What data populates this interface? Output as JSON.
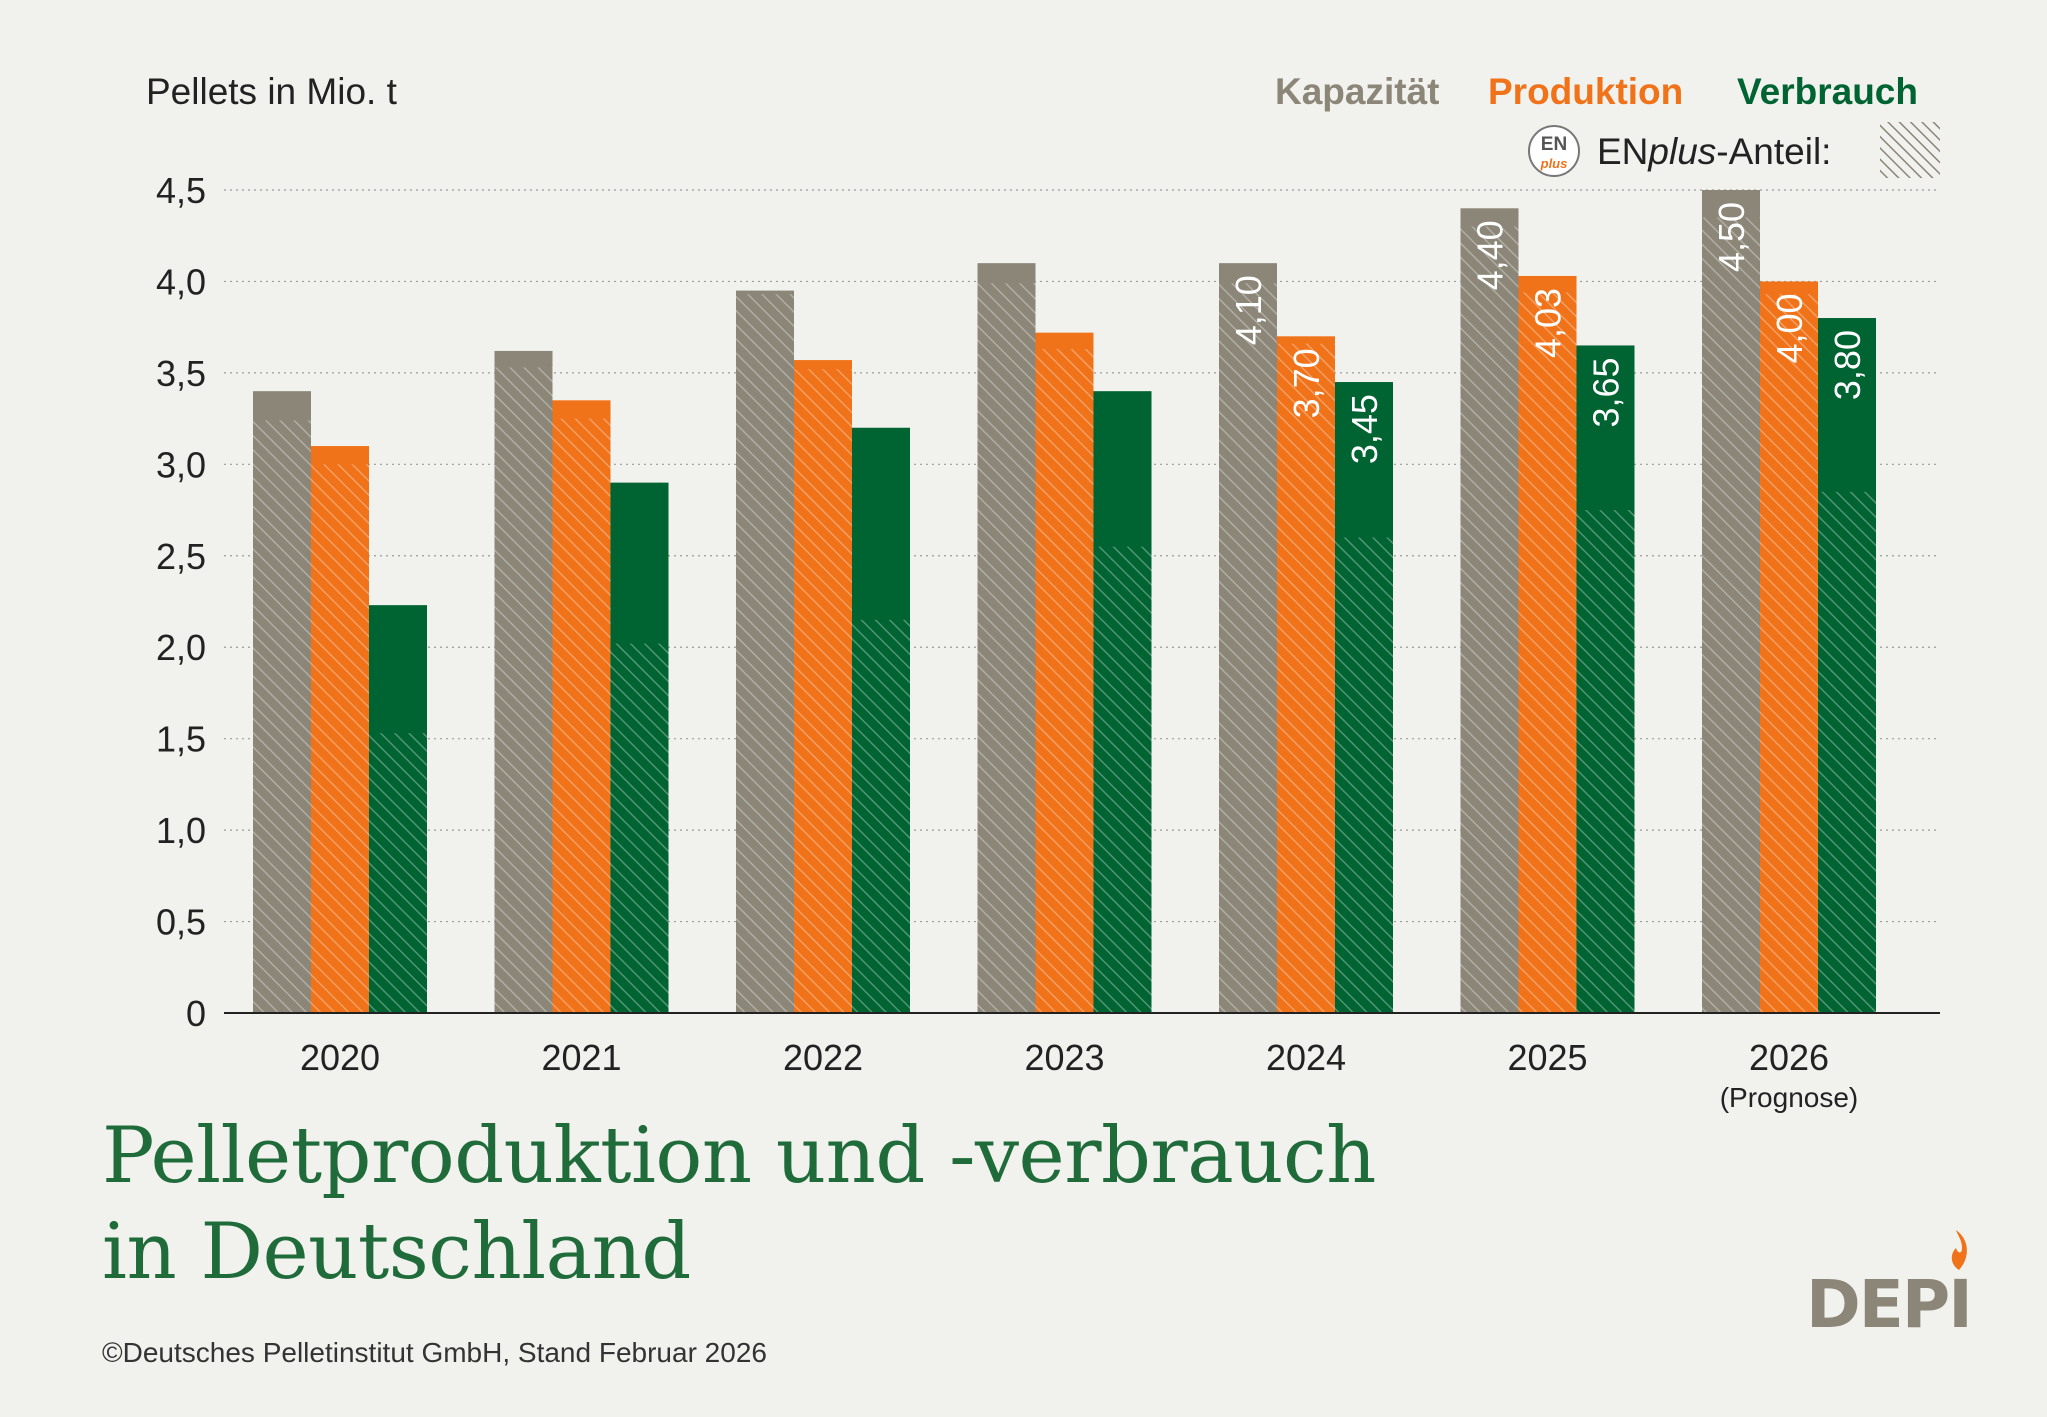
{
  "colors": {
    "capacity": "#8b8678",
    "production": "#f07219",
    "consumption": "#006332",
    "title": "#1f6b3a",
    "background": "#f1f1ee"
  },
  "legend": {
    "capacity": "Kapazität",
    "production": "Produktion",
    "consumption": "Verbrauch",
    "enplus_prefix": "EN",
    "enplus_italic": "plus",
    "enplus_suffix": "-Anteil:",
    "badge_top": "EN",
    "badge_bottom": "plus"
  },
  "title_line1": "Pelletproduktion und -verbrauch",
  "title_line2": "in Deutschland",
  "credit": "©Deutsches Pelletinstitut GmbH, Stand Februar 2026",
  "logo_text": "DEPI",
  "chart_data": {
    "type": "bar",
    "ylabel": "Pellets in Mio. t",
    "ylim": [
      0,
      4.5
    ],
    "yticks": [
      "0",
      "0,5",
      "1,0",
      "1,5",
      "2,0",
      "2,5",
      "3,0",
      "3,5",
      "4,0",
      "4,5"
    ],
    "grid": true,
    "legend_position": "top-right",
    "categories": [
      "2020",
      "2021",
      "2022",
      "2023",
      "2024",
      "2025",
      "2026"
    ],
    "category_notes": [
      "",
      "",
      "",
      "",
      "",
      "",
      "(Prognose)"
    ],
    "series": [
      {
        "name": "Kapazität",
        "values": [
          3.4,
          3.62,
          3.95,
          4.1,
          4.1,
          4.4,
          4.5
        ],
        "enplus": [
          3.24,
          3.53,
          3.93,
          3.99,
          3.99,
          4.3,
          4.35
        ],
        "labels": [
          "",
          "",
          "",
          "",
          "4,10",
          "4,40",
          "4,50"
        ]
      },
      {
        "name": "Produktion",
        "values": [
          3.1,
          3.35,
          3.57,
          3.72,
          3.7,
          4.03,
          4.0
        ],
        "enplus": [
          3.0,
          3.25,
          3.52,
          3.63,
          3.66,
          3.94,
          3.93
        ],
        "labels": [
          "",
          "",
          "",
          "",
          "3,70",
          "4,03",
          "4,00"
        ]
      },
      {
        "name": "Verbrauch",
        "values": [
          2.23,
          2.9,
          3.2,
          3.4,
          3.45,
          3.65,
          3.8
        ],
        "enplus": [
          1.53,
          2.02,
          2.15,
          2.55,
          2.6,
          2.75,
          2.85
        ],
        "labels": [
          "",
          "",
          "",
          "",
          "3,45",
          "3,65",
          "3,80"
        ]
      }
    ]
  }
}
